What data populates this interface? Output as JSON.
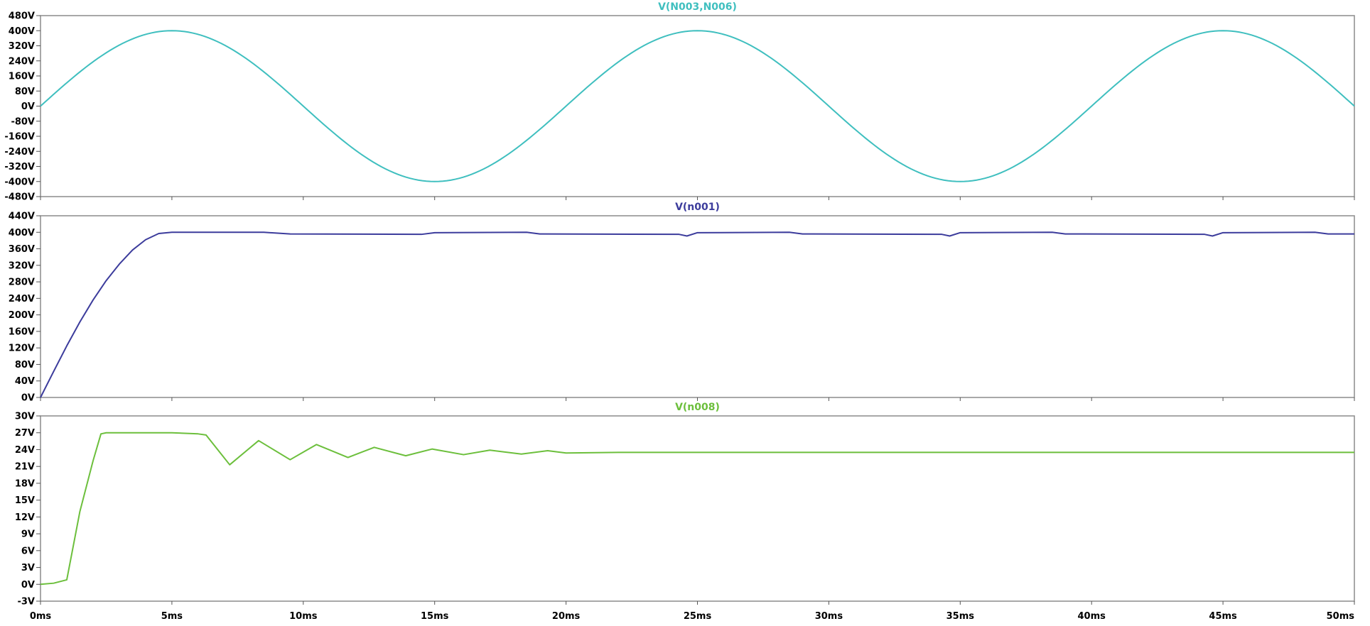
{
  "chart_data": [
    {
      "type": "line",
      "title": "V(N003,N006)",
      "color": "#3fbfbf",
      "x_unit": "ms",
      "xlim": [
        0,
        50
      ],
      "ylim": [
        -480,
        480
      ],
      "yticks": [
        480,
        400,
        320,
        240,
        160,
        80,
        0,
        -80,
        -160,
        -240,
        -320,
        -400,
        -480
      ],
      "ytick_labels": [
        "480V",
        "400V",
        "320V",
        "240V",
        "160V",
        "80V",
        "0V",
        "-80V",
        "-160V",
        "-240V",
        "-320V",
        "-400V",
        "-480V"
      ],
      "series": [
        {
          "x": [
            0,
            1.25,
            2.5,
            3.75,
            5,
            6.25,
            7.5,
            8.75,
            10,
            11.25,
            12.5,
            13.75,
            15,
            16.25,
            17.5,
            18.75,
            20,
            21.25,
            22.5,
            23.75,
            25,
            26.25,
            27.5,
            28.75,
            30,
            31.25,
            32.5,
            33.75,
            35,
            36.25,
            37.5,
            38.75,
            40,
            41.25,
            42.5,
            43.75,
            45,
            46.25,
            47.5,
            48.75,
            50
          ],
          "y": [
            0,
            153,
            283,
            370,
            400,
            370,
            283,
            153,
            0,
            -153,
            -283,
            -370,
            -400,
            -370,
            -283,
            -153,
            0,
            153,
            283,
            370,
            400,
            370,
            283,
            153,
            0,
            -153,
            -283,
            -370,
            -400,
            -370,
            -283,
            -153,
            0,
            153,
            283,
            370,
            400,
            370,
            283,
            153,
            0
          ]
        }
      ]
    },
    {
      "type": "line",
      "title": "V(n001)",
      "color": "#3c3c9c",
      "x_unit": "ms",
      "xlim": [
        0,
        50
      ],
      "ylim": [
        0,
        440
      ],
      "yticks": [
        440,
        400,
        360,
        320,
        280,
        240,
        200,
        160,
        120,
        80,
        40,
        0
      ],
      "ytick_labels": [
        "440V",
        "400V",
        "360V",
        "320V",
        "280V",
        "240V",
        "200V",
        "160V",
        "120V",
        "80V",
        "40V",
        "0V"
      ],
      "series": [
        {
          "x": [
            0,
            0.5,
            1,
            1.5,
            2,
            2.5,
            3,
            3.5,
            4,
            4.5,
            5,
            6,
            8.5,
            9.5,
            14.5,
            15,
            18.5,
            19,
            24.3,
            24.6,
            25,
            28.5,
            29,
            34.3,
            34.6,
            35,
            38.5,
            39,
            44.3,
            44.6,
            45,
            48.5,
            49,
            50
          ],
          "y": [
            0,
            63,
            125,
            183,
            236,
            283,
            323,
            357,
            382,
            397,
            400,
            400,
            400,
            396,
            395,
            399,
            400,
            396,
            395,
            391,
            399,
            400,
            396,
            395,
            391,
            399,
            400,
            396,
            395,
            391,
            399,
            400,
            396,
            396
          ]
        }
      ]
    },
    {
      "type": "line",
      "title": "V(n008)",
      "color": "#6cbf3c",
      "x_unit": "ms",
      "xlim": [
        0,
        50
      ],
      "ylim": [
        -3,
        30
      ],
      "yticks": [
        30,
        27,
        24,
        21,
        18,
        15,
        12,
        9,
        6,
        3,
        0,
        -3
      ],
      "ytick_labels": [
        "30V",
        "27V",
        "24V",
        "21V",
        "18V",
        "15V",
        "12V",
        "9V",
        "6V",
        "3V",
        "0V",
        "-3V"
      ],
      "xticks": [
        0,
        5,
        10,
        15,
        20,
        25,
        30,
        35,
        40,
        45,
        50
      ],
      "xtick_labels": [
        "0ms",
        "5ms",
        "10ms",
        "15ms",
        "20ms",
        "25ms",
        "30ms",
        "35ms",
        "40ms",
        "45ms",
        "50ms"
      ],
      "series": [
        {
          "x": [
            0,
            0.5,
            1,
            1.5,
            2,
            2.3,
            2.5,
            3,
            4,
            5,
            6,
            6.3,
            7.2,
            8.3,
            9.5,
            10.5,
            11.7,
            12.7,
            13.9,
            14.9,
            16.1,
            17.1,
            18.3,
            19.3,
            20,
            22,
            25,
            30,
            35,
            40,
            45,
            50
          ],
          "y": [
            0,
            0.2,
            0.8,
            13,
            22,
            26.8,
            27,
            27,
            27,
            27,
            26.8,
            26.6,
            21.3,
            25.6,
            22.2,
            24.9,
            22.6,
            24.4,
            22.9,
            24.1,
            23.1,
            23.9,
            23.2,
            23.8,
            23.4,
            23.5,
            23.5,
            23.5,
            23.5,
            23.5,
            23.5,
            23.5
          ]
        }
      ]
    }
  ]
}
